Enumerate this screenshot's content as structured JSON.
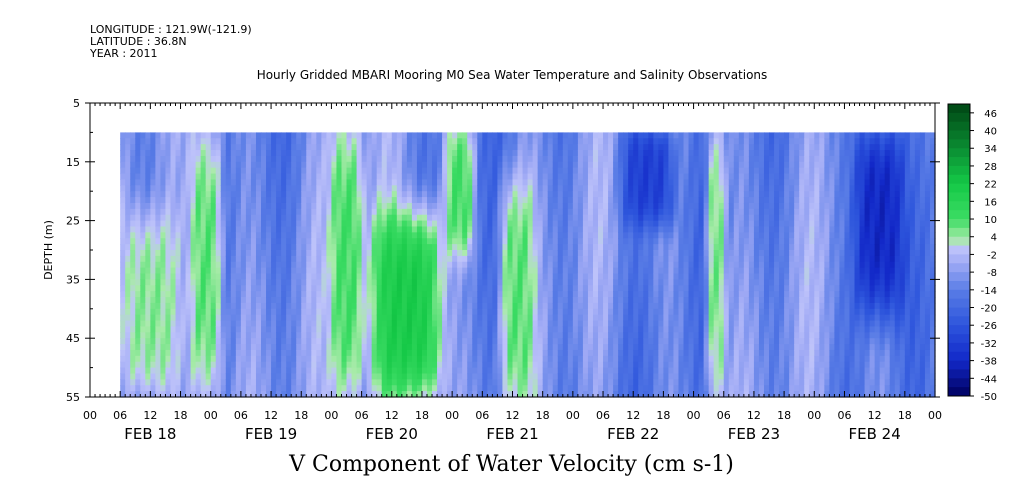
{
  "header": {
    "longitude": "LONGITUDE : 121.9W(-121.9)",
    "latitude": "LATITUDE : 36.8N",
    "year": "YEAR : 2011",
    "title": "Hourly Gridded MBARI Mooring M0 Sea Water Temperature and Salinity Observations"
  },
  "chart_data": {
    "type": "heatmap",
    "title": "Hourly Gridded MBARI Mooring M0 Sea Water Temperature and Salinity Observations",
    "subtitle": "V Component of Water Velocity (cm s-1)",
    "ylabel": "DEPTH (m)",
    "xlabel": "",
    "y_axis": {
      "range": [
        5,
        55
      ],
      "inverted": true,
      "tick_labels": [
        "5",
        "15",
        "25",
        "35",
        "45",
        "55"
      ]
    },
    "x_axis": {
      "range_hours": [
        0,
        168
      ],
      "hour_tick_labels": [
        "00",
        "06",
        "12",
        "18",
        "00",
        "06",
        "12",
        "18",
        "00",
        "06",
        "12",
        "18",
        "00",
        "06",
        "12",
        "18",
        "00",
        "06",
        "12",
        "18",
        "00",
        "06",
        "12",
        "18",
        "00",
        "06",
        "12",
        "18",
        "00"
      ],
      "day_labels": [
        "FEB 18",
        "FEB 19",
        "FEB 20",
        "FEB 21",
        "FEB 22",
        "FEB 23",
        "FEB 24"
      ]
    },
    "data_extent": {
      "start_hour": 6,
      "end_hour": 168,
      "top_depth": 10,
      "bottom_depth": 55
    },
    "colorbar": {
      "labels": [
        "46",
        "40",
        "34",
        "28",
        "22",
        "16",
        "10",
        "4",
        "-2",
        "-8",
        "-14",
        "-20",
        "-26",
        "-32",
        "-38",
        "-44",
        "-50"
      ],
      "range": [
        -50,
        49
      ],
      "step": 3
    },
    "regions": [
      {
        "desc": "positive (green) anomalies",
        "day": "FEB 18",
        "hours": [
          6,
          18
        ],
        "depth": [
          25,
          55
        ],
        "approx_value": 5
      },
      {
        "desc": "positive (green) anomalies",
        "day": "FEB 18-19",
        "hours": [
          20,
          26
        ],
        "depth": [
          10,
          55
        ],
        "approx_value": 8
      },
      {
        "desc": "positive (green) anomalies",
        "day": "FEB 20",
        "hours": [
          48,
          54
        ],
        "depth": [
          10,
          55
        ],
        "approx_value": 10
      },
      {
        "desc": "strong positive",
        "day": "FEB 20",
        "hours": [
          56,
          70
        ],
        "depth": [
          25,
          55
        ],
        "approx_value": 20
      },
      {
        "desc": "positive",
        "day": "FEB 21",
        "hours": [
          71,
          76
        ],
        "depth": [
          10,
          30
        ],
        "approx_value": 10
      },
      {
        "desc": "positive",
        "day": "FEB 21",
        "hours": [
          82,
          88
        ],
        "depth": [
          20,
          55
        ],
        "approx_value": 8
      },
      {
        "desc": "strong negative",
        "day": "FEB 22",
        "hours": [
          106,
          116
        ],
        "depth": [
          10,
          25
        ],
        "approx_value": -32
      },
      {
        "desc": "positive",
        "day": "FEB 23",
        "hours": [
          123,
          126
        ],
        "depth": [
          10,
          55
        ],
        "approx_value": 6
      },
      {
        "desc": "strong negative",
        "day": "FEB 24",
        "hours": [
          152,
          162
        ],
        "depth": [
          10,
          40
        ],
        "approx_value": -38
      }
    ]
  }
}
